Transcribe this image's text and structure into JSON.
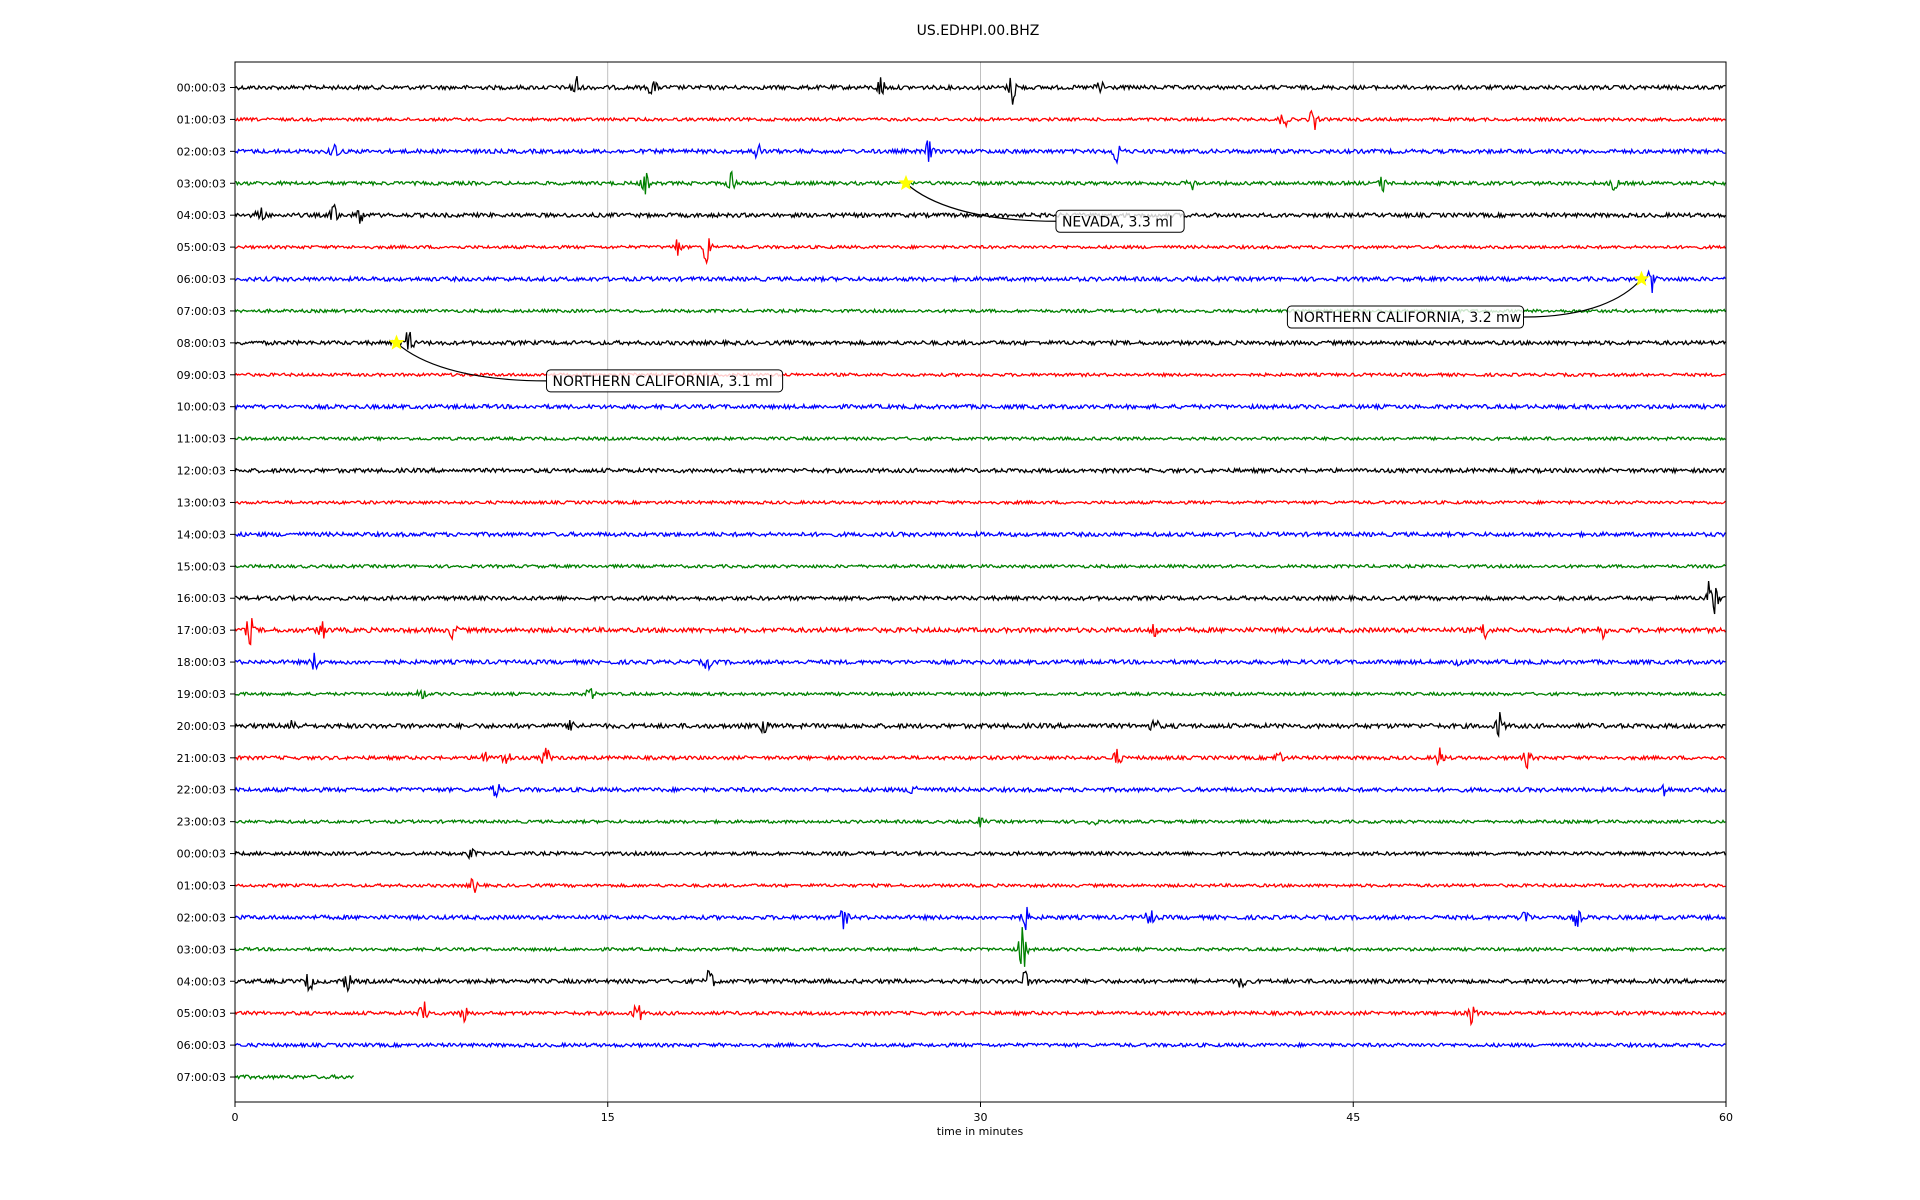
{
  "chart_data": {
    "type": "line",
    "title": "US.EDHPI.00.BHZ",
    "xlabel": "time in minutes",
    "ylabel": "",
    "xlim": [
      0,
      60
    ],
    "x_ticks": [
      0,
      15,
      30,
      45,
      60
    ],
    "grid": "vertical lines at x ticks",
    "colors": [
      "#000000",
      "#ff0000",
      "#0000ff",
      "#008000"
    ],
    "rows": [
      {
        "label": "00:00:03",
        "color": "#000000",
        "noise": 0.8,
        "bursts": [
          [
            13.7,
            1.4
          ],
          [
            16.8,
            0.9
          ],
          [
            26.0,
            1.0
          ],
          [
            31.3,
            1.6
          ],
          [
            34.8,
            1.0
          ]
        ]
      },
      {
        "label": "01:00:03",
        "color": "#ff0000",
        "noise": 0.6,
        "bursts": [
          [
            42.2,
            0.9
          ],
          [
            43.4,
            1.1
          ]
        ]
      },
      {
        "label": "02:00:03",
        "color": "#0000ff",
        "noise": 0.8,
        "bursts": [
          [
            4.0,
            0.8
          ],
          [
            21.0,
            0.9
          ],
          [
            27.9,
            1.0
          ],
          [
            35.5,
            1.3
          ]
        ]
      },
      {
        "label": "03:00:03",
        "color": "#008000",
        "noise": 0.7,
        "bursts": [
          [
            16.5,
            1.0
          ],
          [
            20.0,
            1.2
          ],
          [
            38.5,
            0.6
          ],
          [
            46.2,
            0.7
          ],
          [
            55.5,
            0.6
          ]
        ]
      },
      {
        "label": "04:00:03",
        "color": "#000000",
        "noise": 0.8,
        "bursts": [
          [
            1.0,
            1.2
          ],
          [
            4.0,
            1.0
          ],
          [
            5.0,
            0.9
          ]
        ]
      },
      {
        "label": "05:00:03",
        "color": "#ff0000",
        "noise": 0.6,
        "bursts": [
          [
            17.8,
            0.8
          ],
          [
            19.0,
            1.9
          ]
        ]
      },
      {
        "label": "06:00:03",
        "color": "#0000ff",
        "noise": 0.8,
        "bursts": [
          [
            57.0,
            1.2
          ]
        ]
      },
      {
        "label": "07:00:03",
        "color": "#008000",
        "noise": 0.6,
        "bursts": []
      },
      {
        "label": "08:00:03",
        "color": "#000000",
        "noise": 0.8,
        "bursts": [
          [
            7.0,
            1.4
          ]
        ]
      },
      {
        "label": "09:00:03",
        "color": "#ff0000",
        "noise": 0.6,
        "bursts": []
      },
      {
        "label": "10:00:03",
        "color": "#0000ff",
        "noise": 0.8,
        "bursts": []
      },
      {
        "label": "11:00:03",
        "color": "#008000",
        "noise": 0.6,
        "bursts": []
      },
      {
        "label": "12:00:03",
        "color": "#000000",
        "noise": 0.8,
        "bursts": []
      },
      {
        "label": "13:00:03",
        "color": "#ff0000",
        "noise": 0.6,
        "bursts": []
      },
      {
        "label": "14:00:03",
        "color": "#0000ff",
        "noise": 0.8,
        "bursts": []
      },
      {
        "label": "15:00:03",
        "color": "#008000",
        "noise": 0.6,
        "bursts": []
      },
      {
        "label": "16:00:03",
        "color": "#000000",
        "noise": 0.8,
        "bursts": [
          [
            59.3,
            1.5
          ],
          [
            59.5,
            2.2
          ]
        ]
      },
      {
        "label": "17:00:03",
        "color": "#ff0000",
        "noise": 0.9,
        "bursts": [
          [
            0.6,
            1.2
          ],
          [
            3.5,
            0.8
          ],
          [
            8.8,
            0.8
          ],
          [
            37.0,
            0.7
          ],
          [
            50.3,
            0.9
          ],
          [
            55.0,
            0.7
          ]
        ]
      },
      {
        "label": "18:00:03",
        "color": "#0000ff",
        "noise": 0.8,
        "bursts": [
          [
            3.2,
            0.8
          ],
          [
            19.0,
            0.6
          ],
          [
            49.2,
            0.8
          ]
        ]
      },
      {
        "label": "19:00:03",
        "color": "#008000",
        "noise": 0.6,
        "bursts": [
          [
            7.5,
            0.6
          ],
          [
            14.3,
            0.7
          ]
        ]
      },
      {
        "label": "20:00:03",
        "color": "#000000",
        "noise": 0.9,
        "bursts": [
          [
            2.3,
            0.8
          ],
          [
            13.6,
            0.8
          ],
          [
            21.3,
            0.6
          ],
          [
            37.0,
            0.7
          ],
          [
            50.9,
            1.2
          ]
        ]
      },
      {
        "label": "21:00:03",
        "color": "#ff0000",
        "noise": 0.7,
        "bursts": [
          [
            10.0,
            0.9
          ],
          [
            10.9,
            1.1
          ],
          [
            12.5,
            1.1
          ],
          [
            35.5,
            0.8
          ],
          [
            42.0,
            0.7
          ],
          [
            48.5,
            0.9
          ],
          [
            52.0,
            0.8
          ]
        ]
      },
      {
        "label": "22:00:03",
        "color": "#0000ff",
        "noise": 0.8,
        "bursts": [
          [
            10.5,
            0.8
          ],
          [
            27.3,
            1.0
          ],
          [
            57.5,
            0.6
          ]
        ]
      },
      {
        "label": "23:00:03",
        "color": "#008000",
        "noise": 0.6,
        "bursts": [
          [
            30.0,
            0.4
          ],
          [
            34.5,
            0.4
          ]
        ]
      },
      {
        "label": "00:00:03",
        "color": "#000000",
        "noise": 0.7,
        "bursts": [
          [
            9.5,
            0.4
          ]
        ]
      },
      {
        "label": "01:00:03",
        "color": "#ff0000",
        "noise": 0.6,
        "bursts": [
          [
            9.6,
            0.7
          ]
        ]
      },
      {
        "label": "02:00:03",
        "color": "#0000ff",
        "noise": 0.8,
        "bursts": [
          [
            24.5,
            0.9
          ],
          [
            31.8,
            1.0
          ],
          [
            36.8,
            1.0
          ],
          [
            51.9,
            1.0
          ],
          [
            54.0,
            0.8
          ]
        ]
      },
      {
        "label": "03:00:03",
        "color": "#008000",
        "noise": 0.6,
        "bursts": [
          [
            31.7,
            2.5
          ]
        ]
      },
      {
        "label": "04:00:03",
        "color": "#000000",
        "noise": 0.8,
        "bursts": [
          [
            3.0,
            1.0
          ],
          [
            4.5,
            0.9
          ],
          [
            19.1,
            1.2
          ],
          [
            31.8,
            0.9
          ],
          [
            40.5,
            0.6
          ]
        ]
      },
      {
        "label": "05:00:03",
        "color": "#ff0000",
        "noise": 0.7,
        "bursts": [
          [
            7.6,
            1.6
          ],
          [
            9.2,
            1.2
          ],
          [
            16.2,
            1.1
          ],
          [
            49.8,
            1.2
          ]
        ]
      },
      {
        "label": "06:00:03",
        "color": "#0000ff",
        "noise": 0.7,
        "bursts": []
      },
      {
        "label": "07:00:03",
        "color": "#008000",
        "noise": 0.7,
        "bursts": [],
        "end": 4.8
      }
    ],
    "events": [
      {
        "label": "NEVADA, 3.3 ml",
        "row": 3,
        "x": 27.0
      },
      {
        "label": "NORTHERN CALIFORNIA, 3.2 mw",
        "row": 6,
        "x": 56.6
      },
      {
        "label": "NORTHERN CALIFORNIA, 3.1 ml",
        "row": 8,
        "x": 6.5
      }
    ]
  }
}
